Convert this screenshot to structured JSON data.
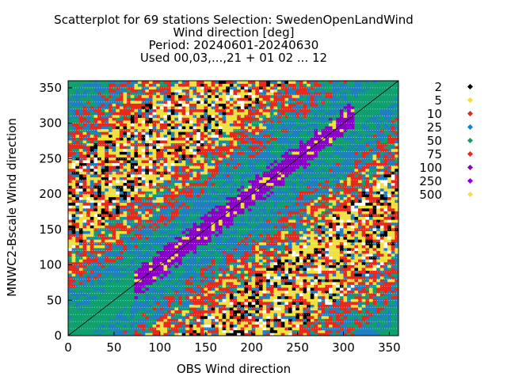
{
  "chart_data": {
    "type": "heatmap",
    "title_lines": [
      "Scatterplot for   69 stations Selection: SwedenOpenLandWind",
      "Wind direction [deg]",
      "Period: 20240601-20240630",
      "Used 00,03,...,21 + 01 02 ... 12"
    ],
    "xlabel": "OBS Wind direction",
    "ylabel": "MNWC2-Bscale Wind direction",
    "xlim": [
      0,
      360
    ],
    "ylim": [
      0,
      360
    ],
    "xticks": [
      0,
      50,
      100,
      150,
      200,
      250,
      300,
      350
    ],
    "yticks": [
      0,
      50,
      100,
      150,
      200,
      250,
      300,
      350
    ],
    "grid": true,
    "diagonal_reference_line": true,
    "legend_position": "right",
    "count_classes": [
      {
        "label": "2",
        "color": "#000000"
      },
      {
        "label": "5",
        "color": "#f0e040"
      },
      {
        "label": "10",
        "color": "#e8281c"
      },
      {
        "label": "25",
        "color": "#1f7fc0"
      },
      {
        "label": "50",
        "color": "#10a070"
      },
      {
        "label": "75",
        "color": "#e8281c"
      },
      {
        "label": "100",
        "color": "#8b00c8"
      },
      {
        "label": "250",
        "color": "#9400d3"
      },
      {
        "label": "500",
        "color": "#f0e040"
      }
    ],
    "density_summary": "Highest counts along the diagonal OBS = model (purple/yellow band from ~80 to ~300 deg), decreasing to green/blue then red/yellow away from the diagonal, sparse black points in the off-diagonal corners."
  }
}
